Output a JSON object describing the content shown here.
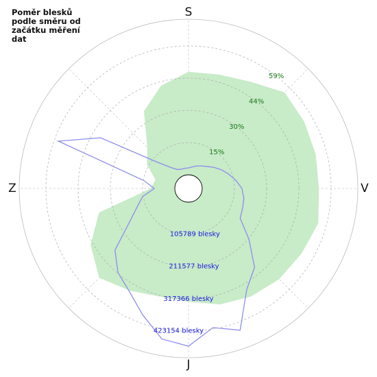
{
  "chart_data": {
    "type": "polar",
    "title": "Poměr blesků podle směru od začátku měření dat",
    "xlim": [
      0,
      360
    ],
    "xticks": [
      {
        "value": 0,
        "label": "S"
      },
      {
        "value": 90,
        "label": "V"
      },
      {
        "value": 180,
        "label": "J"
      },
      {
        "value": 270,
        "label": "Z"
      }
    ],
    "ylim": [
      0,
      71.2
    ],
    "yticks": [
      {
        "value": 14.75,
        "label": "15%"
      },
      {
        "value": 29.5,
        "label": "30%"
      },
      {
        "value": 44.25,
        "label": "44%"
      },
      {
        "value": 59,
        "label": "59%"
      }
    ],
    "y2lim": [
      0,
      510900
    ],
    "y2ticks": [
      {
        "value": 105789,
        "label": "105789 blesky"
      },
      {
        "value": 211577,
        "label": "211577 blesky"
      },
      {
        "value": 317366,
        "label": "317366 blesky"
      },
      {
        "value": 423154,
        "label": "423154 blesky"
      }
    ],
    "grid": true,
    "series": [
      {
        "color": "#c8ebc8",
        "fill": true,
        "theta": [
          0,
          15,
          30,
          45,
          60,
          75,
          90,
          105,
          120,
          135,
          150,
          165,
          180,
          195,
          210,
          225,
          240,
          255,
          270,
          285,
          300,
          315,
          330,
          345
        ],
        "values": [
          47.1,
          47.7,
          50.2,
          55.9,
          54.9,
          54.0,
          53.4,
          55.2,
          53.4,
          52.4,
          50.8,
          48.7,
          45.5,
          44.9,
          47.7,
          51.5,
          45.5,
          36.1,
          11.0,
          9.4,
          15.7,
          20.4,
          34.5,
          42.4
        ]
      },
      {
        "color": "#8c8cee",
        "fill": false,
        "axis": "y2",
        "theta": [
          0,
          10,
          20,
          30,
          40,
          50,
          60,
          70,
          80,
          90,
          100,
          110,
          120,
          130,
          140,
          150,
          160,
          170,
          180,
          190,
          200,
          210,
          220,
          230,
          240,
          250,
          260,
          270,
          280,
          290,
          300,
          310,
          320,
          330,
          340,
          350
        ],
        "values": [
          22510,
          27012,
          33765,
          40518,
          49522,
          63028,
          78785,
          94542,
          112550,
          130558,
          139562,
          144064,
          150817,
          213845,
          292630,
          337650,
          450200,
          418686,
          472710,
          456953,
          396176,
          344403,
          315140,
          270120,
          180080,
          135060,
          108048,
          67530,
          103546,
          409682,
          288128,
          90040,
          45020,
          27012,
          22510,
          22510
        ]
      }
    ]
  }
}
